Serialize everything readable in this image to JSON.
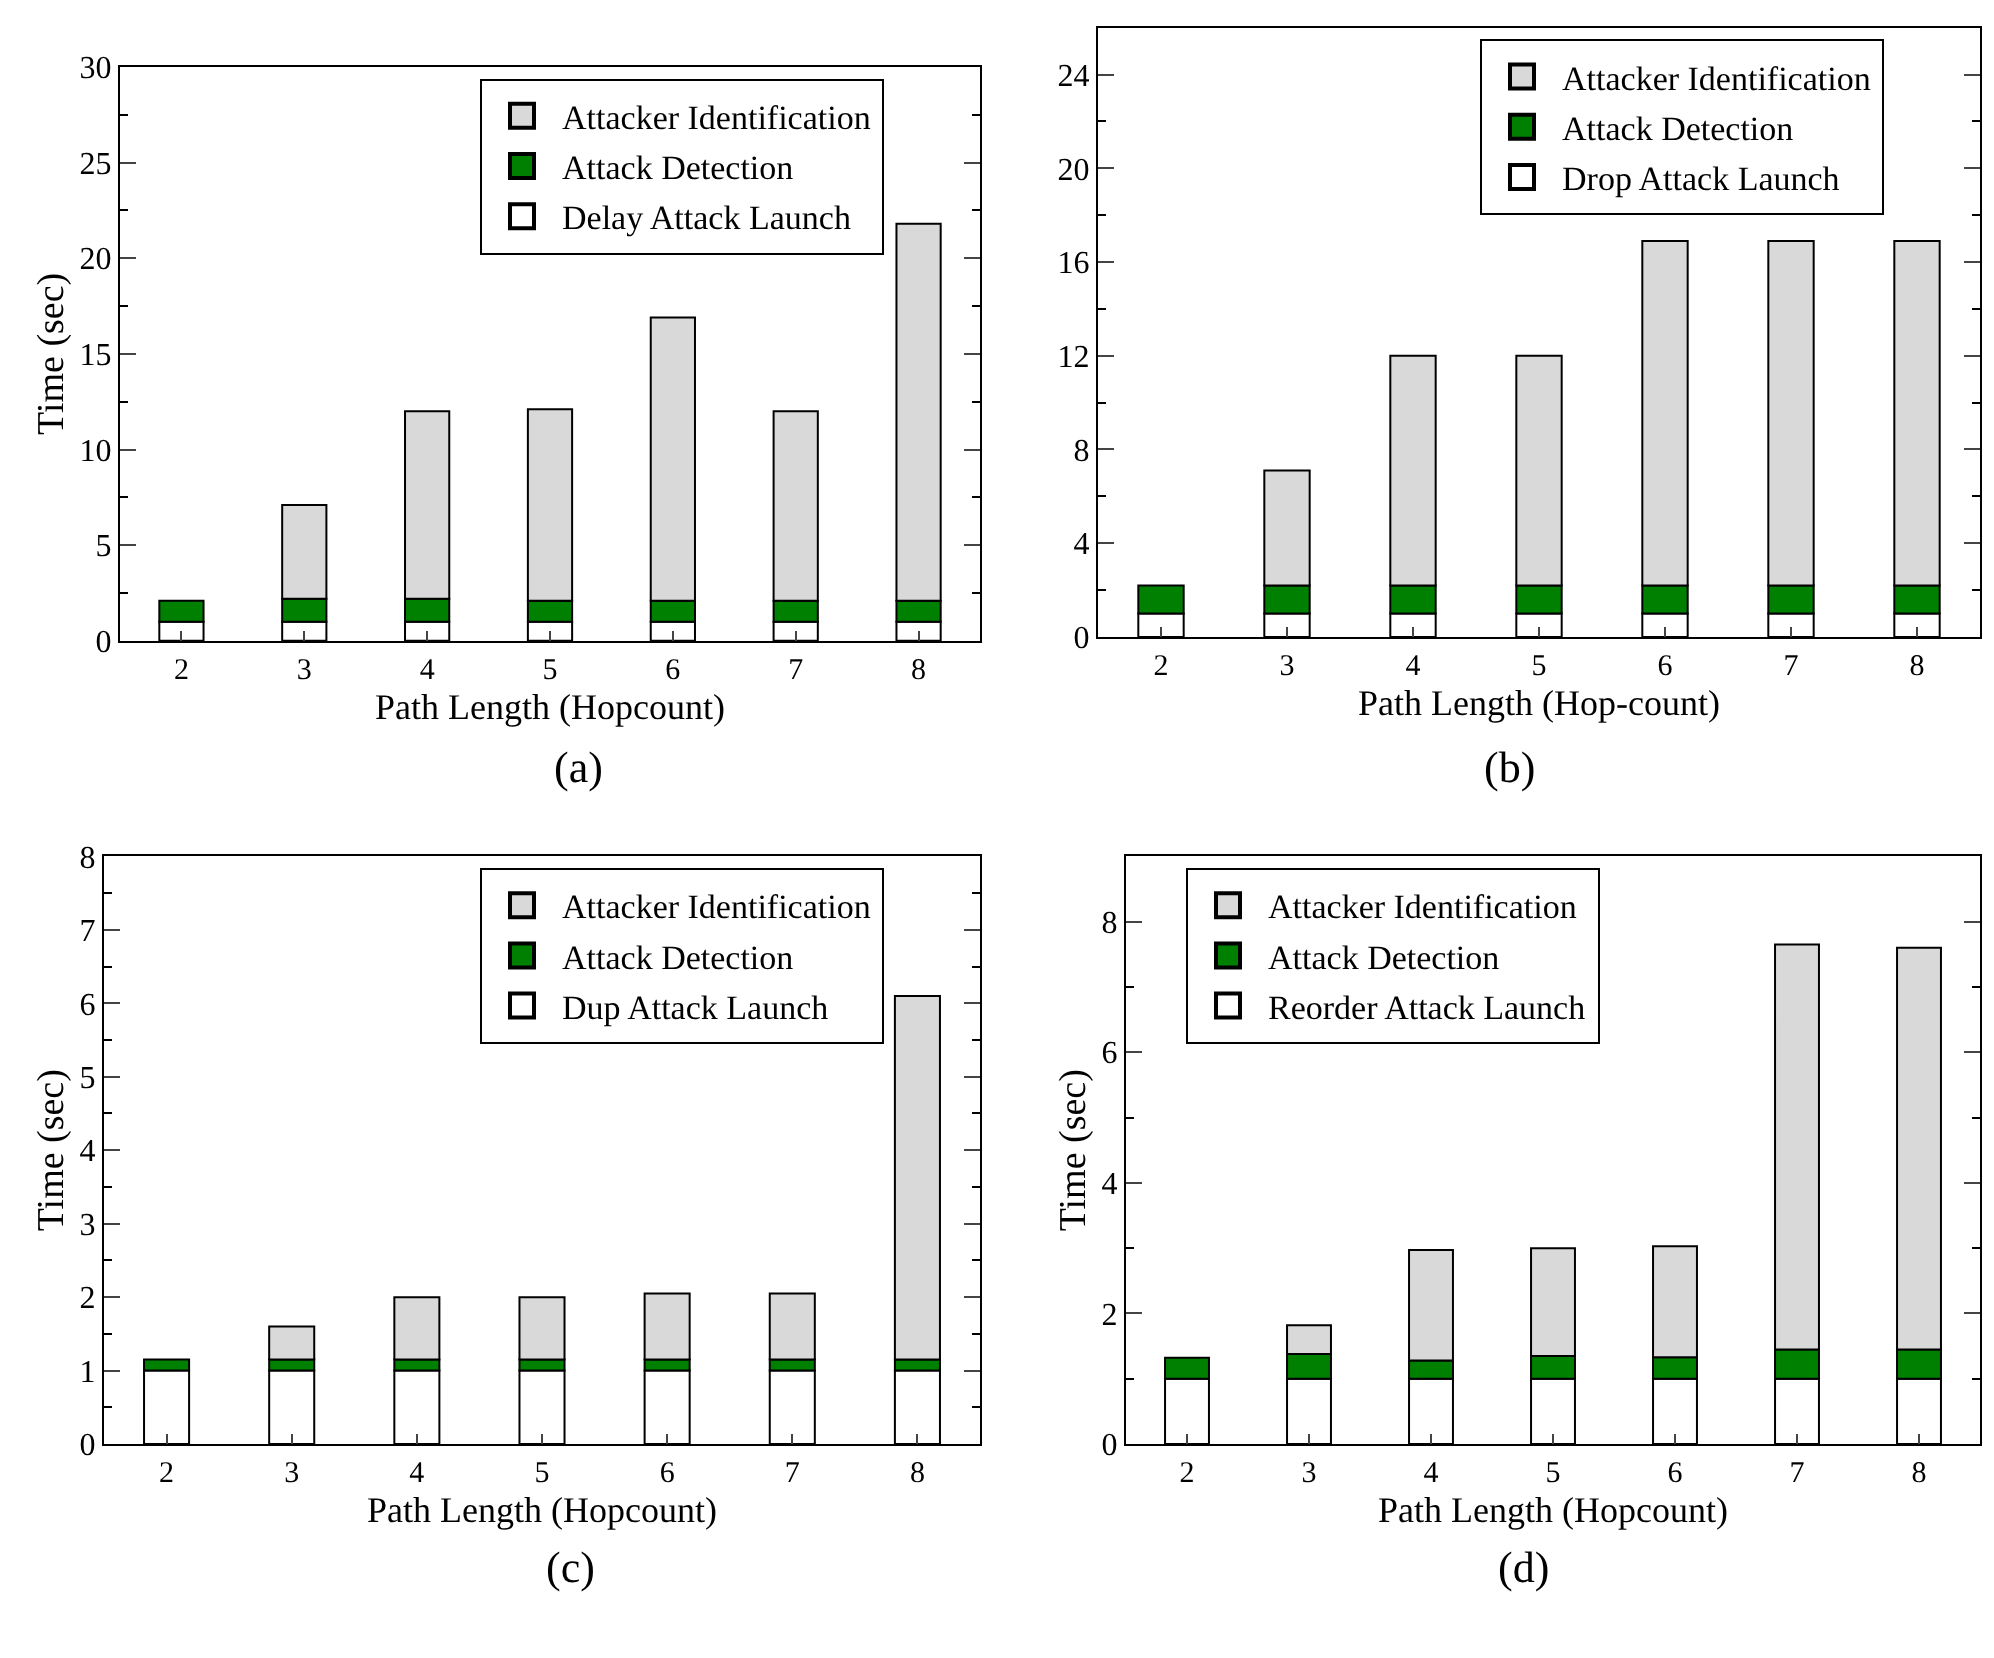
{
  "chart_data": [
    {
      "type": "bar",
      "stacked": true,
      "legend": "top right",
      "xlabel": "Path Length (Hopcount)",
      "ylabel": "Time (sec)",
      "annotations": [
        "(a)"
      ],
      "categories": [
        "2",
        "3",
        "4",
        "5",
        "6",
        "7",
        "8"
      ],
      "ylim": [
        0,
        30
      ],
      "yticks": [
        0,
        {
          "value": 2.5,
          "label": null
        },
        5,
        {
          "value": 7.5,
          "label": null
        },
        10,
        {
          "value": 12.5,
          "label": null
        },
        15,
        {
          "value": 17.5,
          "label": null
        },
        20,
        {
          "value": 22.5,
          "label": null
        },
        25,
        {
          "value": 27.5,
          "label": null
        },
        30
      ],
      "series": [
        {
          "name": "Delay Attack Launch",
          "color": "#ffffff",
          "values": [
            1,
            1,
            1,
            1,
            1,
            1,
            1
          ]
        },
        {
          "name": "Attack Detection",
          "color": "#008000",
          "values": [
            1.1,
            1.2,
            1.2,
            1.1,
            1.1,
            1.1,
            1.1
          ]
        },
        {
          "name": "Attacker Identification",
          "color": "#d9d9d9",
          "values": [
            0,
            4.9,
            9.8,
            10.0,
            14.8,
            9.9,
            19.7
          ]
        }
      ]
    },
    {
      "type": "bar",
      "stacked": true,
      "legend": "top right",
      "xlabel": "Path Length (Hop-count)",
      "annotations": [
        "(b)"
      ],
      "categories": [
        "2",
        "3",
        "4",
        "5",
        "6",
        "7",
        "8"
      ],
      "ylim": [
        0,
        26
      ],
      "yticks": [
        0,
        {
          "value": 2,
          "label": null
        },
        4,
        {
          "value": 6,
          "label": null
        },
        8,
        {
          "value": 10,
          "label": null
        },
        12,
        {
          "value": 14,
          "label": null
        },
        16,
        {
          "value": 18,
          "label": null
        },
        20,
        {
          "value": 22,
          "label": null
        },
        24
      ],
      "series": [
        {
          "name": "Drop Attack Launch",
          "color": "#ffffff",
          "values": [
            1,
            1,
            1,
            1,
            1,
            1,
            1
          ]
        },
        {
          "name": "Attack Detection",
          "color": "#008000",
          "values": [
            1.2,
            1.2,
            1.2,
            1.2,
            1.2,
            1.2,
            1.2
          ]
        },
        {
          "name": "Attacker Identification",
          "color": "#d9d9d9",
          "values": [
            0,
            4.9,
            9.8,
            9.8,
            14.7,
            14.7,
            14.7
          ]
        }
      ]
    },
    {
      "type": "bar",
      "stacked": true,
      "legend": "top right",
      "xlabel": "Path Length (Hopcount)",
      "ylabel": "Time (sec)",
      "annotations": [
        "(c)"
      ],
      "categories": [
        "2",
        "3",
        "4",
        "5",
        "6",
        "7",
        "8"
      ],
      "ylim": [
        0,
        8
      ],
      "yticks": [
        0,
        {
          "value": 0.5,
          "label": null
        },
        1,
        {
          "value": 1.5,
          "label": null
        },
        2,
        {
          "value": 2.5,
          "label": null
        },
        3,
        {
          "value": 3.5,
          "label": null
        },
        4,
        {
          "value": 4.5,
          "label": null
        },
        5,
        {
          "value": 5.5,
          "label": null
        },
        6,
        {
          "value": 6.5,
          "label": null
        },
        7,
        {
          "value": 7.5,
          "label": null
        },
        8
      ],
      "series": [
        {
          "name": "Dup Attack Launch",
          "color": "#ffffff",
          "values": [
            1,
            1,
            1,
            1,
            1,
            1,
            1
          ]
        },
        {
          "name": "Attack Detection",
          "color": "#008000",
          "values": [
            0.15,
            0.15,
            0.15,
            0.15,
            0.15,
            0.15,
            0.15
          ]
        },
        {
          "name": "Attacker Identification",
          "color": "#d9d9d9",
          "values": [
            0,
            0.45,
            0.85,
            0.85,
            0.9,
            0.9,
            4.95
          ]
        }
      ]
    },
    {
      "type": "bar",
      "stacked": true,
      "legend": "top left",
      "xlabel": "Path Length (Hopcount)",
      "ylabel": "Time (sec)",
      "annotations": [
        "(d)"
      ],
      "categories": [
        "2",
        "3",
        "4",
        "5",
        "6",
        "7",
        "8"
      ],
      "ylim": [
        0,
        9
      ],
      "yticks": [
        0,
        {
          "value": 1,
          "label": null
        },
        2,
        {
          "value": 3,
          "label": null
        },
        4,
        {
          "value": 5,
          "label": null
        },
        6,
        {
          "value": 7,
          "label": null
        },
        8
      ],
      "series": [
        {
          "name": "Reorder Attack Launch",
          "color": "#ffffff",
          "values": [
            1,
            1,
            1,
            1,
            1,
            1,
            1
          ]
        },
        {
          "name": "Attack Detection",
          "color": "#008000",
          "values": [
            0.32,
            0.38,
            0.28,
            0.35,
            0.33,
            0.45,
            0.45
          ]
        },
        {
          "name": "Attacker Identification",
          "color": "#d9d9d9",
          "values": [
            0,
            0.44,
            1.69,
            1.65,
            1.7,
            6.2,
            6.15
          ]
        }
      ]
    }
  ]
}
